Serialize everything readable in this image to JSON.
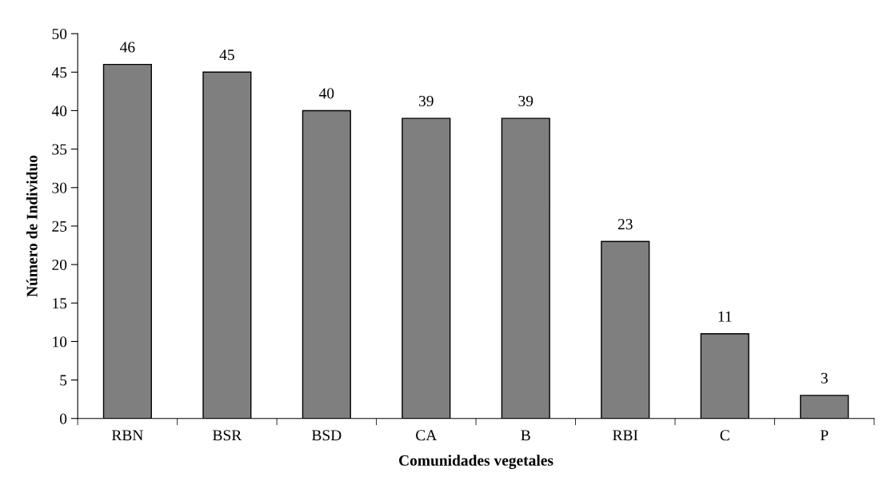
{
  "chart_data": {
    "type": "bar",
    "xlabel": "Comunidades vegetales",
    "ylabel": "Número de Individuo",
    "categories": [
      "RBN",
      "BSR",
      "BSD",
      "CA",
      "B",
      "RBI",
      "C",
      "P"
    ],
    "values": [
      46,
      45,
      40,
      39,
      39,
      23,
      11,
      3
    ],
    "color": "#7f7f7f",
    "ylim": [
      0,
      50
    ],
    "yticks": [
      0,
      5,
      10,
      15,
      20,
      25,
      30,
      35,
      40,
      45,
      50
    ],
    "data_labels": true,
    "grid": false
  }
}
